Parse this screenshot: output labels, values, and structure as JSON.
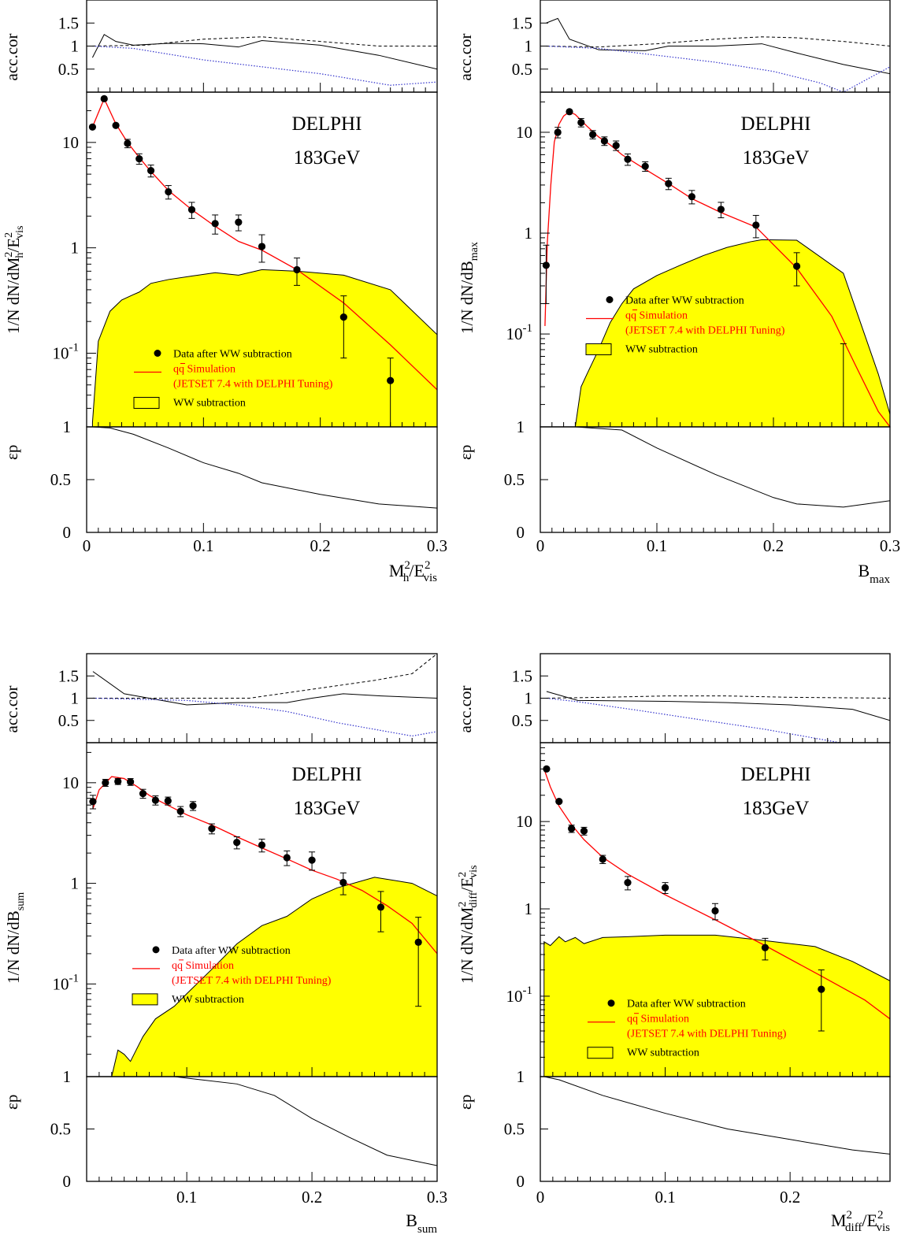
{
  "legend": {
    "data_label": "Data after WW subtraction",
    "sim_label": "qq Simulation",
    "sim_sub": "(JETSET 7.4 with DELPHI Tuning)",
    "ww_label": "WW subtraction"
  },
  "colors": {
    "data": "#000000",
    "simulation": "#ff0000",
    "ww": "#ffff00",
    "acc_dotted": "#3333cc"
  },
  "chart_data": [
    {
      "type": "scatter",
      "title": "DELPHI",
      "subtitle": "183GeV",
      "xlabel": "M_h^2/E_vis^2",
      "xlabel_parts": [
        "M",
        "2",
        "h",
        "/E",
        "2",
        "vis"
      ],
      "ylabel": "1/N dN/dM_h^2/E_vis^2",
      "ylabel_parts": [
        "1/N dN/dM",
        "2",
        "h",
        "/E",
        "2",
        "vis"
      ],
      "xlim": [
        0,
        0.3
      ],
      "x_ticks": [
        "0",
        "0.1",
        "0.2",
        "0.3"
      ],
      "main_ylim": [
        0.02,
        30
      ],
      "y_ticks": [
        "1",
        "10"
      ],
      "decade_labels": [
        {
          "base": "10",
          "exp": "-1"
        }
      ],
      "data": {
        "x": [
          0.005,
          0.015,
          0.025,
          0.035,
          0.045,
          0.055,
          0.07,
          0.09,
          0.11,
          0.13,
          0.15,
          0.18,
          0.22,
          0.26
        ],
        "y": [
          14,
          26,
          14.5,
          9.8,
          7,
          5.4,
          3.4,
          2.3,
          1.7,
          1.75,
          1.03,
          0.62,
          0.22,
          0.055
        ],
        "err": [
          0,
          0,
          0,
          0.9,
          0.8,
          0.7,
          0.5,
          0.4,
          0.35,
          0.3,
          0.3,
          0.18,
          0.13,
          0.035
        ]
      },
      "simulation": {
        "x": [
          0.005,
          0.015,
          0.025,
          0.035,
          0.045,
          0.055,
          0.07,
          0.09,
          0.11,
          0.13,
          0.15,
          0.18,
          0.22,
          0.26,
          0.3
        ],
        "y": [
          14,
          26,
          15,
          10,
          7.2,
          5.3,
          3.5,
          2.3,
          1.6,
          1.15,
          0.95,
          0.62,
          0.3,
          0.12,
          0.045
        ]
      },
      "ww": {
        "x": [
          0.005,
          0.01,
          0.02,
          0.03,
          0.04,
          0.045,
          0.055,
          0.07,
          0.09,
          0.11,
          0.13,
          0.15,
          0.18,
          0.22,
          0.26,
          0.3
        ],
        "y": [
          0.022,
          0.13,
          0.25,
          0.32,
          0.36,
          0.38,
          0.46,
          0.5,
          0.54,
          0.58,
          0.55,
          0.62,
          0.6,
          0.55,
          0.4,
          0.15
        ]
      },
      "legend_position": "lower-center",
      "legend_ww_filled": false,
      "acc": {
        "ylabel": "acc.cor",
        "ylim": [
          0,
          2
        ],
        "y_ticks": [
          "0.5",
          "1",
          "1.5"
        ],
        "solid": {
          "x": [
            0.005,
            0.015,
            0.025,
            0.04,
            0.07,
            0.1,
            0.13,
            0.15,
            0.2,
            0.25,
            0.3
          ],
          "y": [
            0.75,
            1.25,
            1.1,
            1.02,
            1.06,
            1.05,
            0.98,
            1.12,
            1.02,
            0.8,
            0.5
          ]
        },
        "dashed": {
          "x": [
            0.005,
            0.05,
            0.1,
            0.15,
            0.2,
            0.25,
            0.3
          ],
          "y": [
            1,
            1.02,
            1.15,
            1.2,
            1.1,
            1.0,
            1.0
          ]
        },
        "dotted": {
          "x": [
            0.005,
            0.04,
            0.1,
            0.15,
            0.2,
            0.26,
            0.3
          ],
          "y": [
            1,
            0.95,
            0.7,
            0.55,
            0.4,
            0.15,
            0.22
          ]
        }
      },
      "eff": {
        "ylabel": "εp",
        "ylim": [
          0,
          1
        ],
        "y_ticks": [
          "0",
          "0.5",
          "1"
        ],
        "line": {
          "x": [
            0.005,
            0.02,
            0.04,
            0.07,
            0.1,
            0.13,
            0.15,
            0.2,
            0.25,
            0.3
          ],
          "y": [
            1,
            0.99,
            0.93,
            0.8,
            0.66,
            0.56,
            0.47,
            0.36,
            0.27,
            0.23
          ]
        }
      }
    },
    {
      "type": "scatter",
      "title": "DELPHI",
      "subtitle": "183GeV",
      "xlabel": "B_max",
      "xlabel_parts": [
        "B",
        "",
        "max",
        "",
        "",
        ""
      ],
      "ylabel": "1/N dN/dB_max",
      "ylabel_parts": [
        "1/N dN/dB",
        "",
        "max",
        "",
        "",
        ""
      ],
      "xlim": [
        0,
        0.3
      ],
      "x_ticks": [
        "0",
        "0.1",
        "0.2",
        "0.3"
      ],
      "main_ylim": [
        0.012,
        25
      ],
      "y_ticks": [
        "1",
        "10"
      ],
      "decade_labels": [
        {
          "base": "10",
          "exp": "-1"
        }
      ],
      "data": {
        "x": [
          0.005,
          0.015,
          0.025,
          0.035,
          0.045,
          0.055,
          0.065,
          0.075,
          0.09,
          0.11,
          0.13,
          0.155,
          0.185,
          0.22,
          0.26
        ],
        "y": [
          0.48,
          10,
          16,
          12.5,
          9.5,
          8.2,
          7.4,
          5.4,
          4.6,
          3.1,
          2.3,
          1.72,
          1.2,
          0.47,
          null
        ],
        "err": [
          0.28,
          1.2,
          0.5,
          1.2,
          0.9,
          0.8,
          0.8,
          0.7,
          0.5,
          0.4,
          0.35,
          0.3,
          0.3,
          0.17,
          null
        ],
        "lone_errorbar": {
          "x": 0.26,
          "lo": 0.012,
          "hi": 0.08
        }
      },
      "simulation": {
        "x": [
          0.004,
          0.006,
          0.009,
          0.012,
          0.016,
          0.02,
          0.025,
          0.03,
          0.04,
          0.05,
          0.06,
          0.07,
          0.09,
          0.11,
          0.13,
          0.155,
          0.185,
          0.22,
          0.25,
          0.27,
          0.29,
          0.3
        ],
        "y": [
          0.12,
          0.8,
          3,
          8,
          12,
          14.5,
          16,
          15,
          11.5,
          9,
          7.5,
          6,
          4.3,
          3.1,
          2.2,
          1.6,
          1.15,
          0.45,
          0.15,
          0.05,
          0.017,
          0.012
        ]
      },
      "ww": {
        "x": [
          0.03,
          0.035,
          0.04,
          0.05,
          0.06,
          0.07,
          0.08,
          0.1,
          0.12,
          0.14,
          0.16,
          0.18,
          0.19,
          0.22,
          0.26,
          0.29,
          0.3
        ],
        "y": [
          0.012,
          0.03,
          0.04,
          0.07,
          0.13,
          0.2,
          0.28,
          0.38,
          0.48,
          0.6,
          0.72,
          0.82,
          0.86,
          0.85,
          0.4,
          0.04,
          0.016
        ]
      },
      "legend_position": "center",
      "legend_ww_filled": true,
      "acc": {
        "ylabel": "acc.cor",
        "ylim": [
          0,
          2
        ],
        "y_ticks": [
          "0.5",
          "1",
          "1.5"
        ],
        "solid": {
          "x": [
            0.005,
            0.015,
            0.025,
            0.05,
            0.09,
            0.11,
            0.15,
            0.19,
            0.22,
            0.26,
            0.3
          ],
          "y": [
            1.5,
            1.6,
            1.15,
            0.92,
            0.9,
            1.0,
            1.0,
            1.05,
            0.85,
            0.6,
            0.4
          ]
        },
        "dashed": {
          "x": [
            0.005,
            0.05,
            0.1,
            0.15,
            0.19,
            0.22,
            0.26,
            0.3
          ],
          "y": [
            1,
            0.98,
            1.05,
            1.15,
            1.2,
            1.18,
            1.1,
            1.0
          ]
        },
        "dotted": {
          "x": [
            0.005,
            0.05,
            0.1,
            0.15,
            0.2,
            0.24,
            0.26,
            0.3
          ],
          "y": [
            1,
            0.95,
            0.8,
            0.65,
            0.45,
            0.2,
            0.0,
            0.55
          ]
        }
      },
      "eff": {
        "ylabel": "εp",
        "ylim": [
          0,
          1
        ],
        "y_ticks": [
          "0",
          "0.5",
          "1"
        ],
        "line": {
          "x": [
            0.005,
            0.03,
            0.07,
            0.1,
            0.15,
            0.2,
            0.22,
            0.26,
            0.3
          ],
          "y": [
            1,
            1,
            0.97,
            0.8,
            0.55,
            0.33,
            0.27,
            0.24,
            0.3
          ]
        }
      }
    },
    {
      "type": "scatter",
      "title": "DELPHI",
      "subtitle": "183GeV",
      "xlabel": "B_sum",
      "xlabel_parts": [
        "B",
        "",
        "sum",
        "",
        "",
        ""
      ],
      "ylabel": "1/N dN/dB_sum",
      "ylabel_parts": [
        "1/N dN/dB",
        "",
        "sum",
        "",
        "",
        ""
      ],
      "xlim": [
        0.02,
        0.3
      ],
      "x_ticks": [
        "0.1",
        "0.2",
        "0.3"
      ],
      "main_ylim": [
        0.012,
        25
      ],
      "y_ticks": [
        "1",
        "10"
      ],
      "decade_labels": [
        {
          "base": "10",
          "exp": "-1"
        }
      ],
      "data": {
        "x": [
          0.025,
          0.035,
          0.045,
          0.055,
          0.065,
          0.075,
          0.085,
          0.095,
          0.105,
          0.12,
          0.14,
          0.16,
          0.18,
          0.2,
          0.225,
          0.255,
          0.285
        ],
        "y": [
          6.5,
          10,
          10.3,
          10.2,
          7.8,
          6.7,
          6.6,
          5.2,
          5.9,
          3.5,
          2.55,
          2.4,
          1.8,
          1.7,
          1.02,
          0.58,
          0.26
        ],
        "err": [
          1.0,
          0.8,
          0.7,
          0.8,
          0.8,
          0.7,
          0.6,
          0.6,
          0.6,
          0.4,
          0.35,
          0.35,
          0.3,
          0.35,
          0.25,
          0.25,
          0.2
        ]
      },
      "simulation": {
        "x": [
          0.025,
          0.03,
          0.04,
          0.05,
          0.06,
          0.07,
          0.08,
          0.1,
          0.12,
          0.14,
          0.16,
          0.18,
          0.2,
          0.22,
          0.24,
          0.26,
          0.28,
          0.3
        ],
        "y": [
          5.5,
          8.5,
          11.5,
          11,
          9.2,
          7.5,
          6.4,
          4.8,
          3.8,
          2.9,
          2.25,
          1.75,
          1.35,
          1.1,
          0.85,
          0.6,
          0.4,
          0.2
        ]
      },
      "ww": {
        "x": [
          0.04,
          0.045,
          0.05,
          0.055,
          0.065,
          0.075,
          0.09,
          0.1,
          0.12,
          0.14,
          0.16,
          0.18,
          0.2,
          0.22,
          0.25,
          0.28,
          0.3
        ],
        "y": [
          0.012,
          0.022,
          0.02,
          0.017,
          0.03,
          0.045,
          0.06,
          0.08,
          0.14,
          0.25,
          0.38,
          0.47,
          0.7,
          0.9,
          1.15,
          1.0,
          0.75
        ]
      },
      "legend_position": "center",
      "legend_ww_filled": true,
      "acc": {
        "ylabel": "acc.cor",
        "ylim": [
          0,
          2
        ],
        "y_ticks": [
          "0.5",
          "1",
          "1.5"
        ],
        "solid": {
          "x": [
            0.025,
            0.05,
            0.08,
            0.1,
            0.14,
            0.18,
            0.2,
            0.225,
            0.255,
            0.3
          ],
          "y": [
            1.6,
            1.1,
            0.95,
            0.85,
            0.9,
            0.9,
            1.0,
            1.1,
            1.05,
            1.0
          ]
        },
        "dashed": {
          "x": [
            0.025,
            0.1,
            0.15,
            0.2,
            0.25,
            0.28,
            0.3
          ],
          "y": [
            1,
            1,
            1,
            1.2,
            1.4,
            1.55,
            2.0
          ]
        },
        "dotted": {
          "x": [
            0.025,
            0.1,
            0.14,
            0.18,
            0.22,
            0.27,
            0.28,
            0.3
          ],
          "y": [
            1,
            0.95,
            0.85,
            0.7,
            0.45,
            0.2,
            0.15,
            0.25
          ]
        }
      },
      "eff": {
        "ylabel": "εp",
        "ylim": [
          0,
          1
        ],
        "y_ticks": [
          "0",
          "0.5",
          "1"
        ],
        "line": {
          "x": [
            0.05,
            0.09,
            0.14,
            0.17,
            0.2,
            0.23,
            0.26,
            0.3
          ],
          "y": [
            1.0,
            1.0,
            0.93,
            0.82,
            0.6,
            0.42,
            0.25,
            0.15
          ]
        }
      }
    },
    {
      "type": "scatter",
      "title": "DELPHI",
      "subtitle": "183GeV",
      "xlabel": "M_diff^2/E_vis^2",
      "xlabel_parts": [
        "M",
        "2",
        "diff",
        "/E",
        "2",
        "vis"
      ],
      "ylabel": "1/N dN/dM_diff^2/E_vis^2",
      "ylabel_parts": [
        "1/N dN/dM",
        "2",
        "diff",
        "/E",
        "2",
        "vis"
      ],
      "xlim": [
        0,
        0.28
      ],
      "x_ticks": [
        "0",
        "0.1",
        "0.2"
      ],
      "main_ylim": [
        0.012,
        80
      ],
      "y_ticks": [
        "1",
        "10"
      ],
      "decade_labels": [
        {
          "base": "10",
          "exp": "-1"
        }
      ],
      "data": {
        "x": [
          0.005,
          0.015,
          0.025,
          0.035,
          0.05,
          0.07,
          0.1,
          0.14,
          0.18,
          0.225
        ],
        "y": [
          40,
          17,
          8.3,
          7.8,
          3.7,
          2.0,
          1.75,
          0.95,
          0.36,
          0.12
        ],
        "err": [
          0,
          0,
          0.8,
          0.8,
          0.4,
          0.35,
          0.25,
          0.2,
          0.1,
          0.08
        ]
      },
      "simulation": {
        "x": [
          0.003,
          0.008,
          0.015,
          0.025,
          0.035,
          0.05,
          0.07,
          0.1,
          0.14,
          0.18,
          0.225,
          0.26,
          0.28
        ],
        "y": [
          40,
          25,
          15,
          9.2,
          6.2,
          3.9,
          2.5,
          1.45,
          0.75,
          0.38,
          0.17,
          0.09,
          0.055
        ]
      },
      "ww": {
        "x": [
          0.003,
          0.008,
          0.015,
          0.02,
          0.028,
          0.035,
          0.05,
          0.07,
          0.1,
          0.14,
          0.17,
          0.22,
          0.25,
          0.28
        ],
        "y": [
          0.42,
          0.38,
          0.48,
          0.42,
          0.47,
          0.4,
          0.47,
          0.48,
          0.5,
          0.5,
          0.45,
          0.37,
          0.25,
          0.15
        ]
      },
      "legend_position": "lower-center",
      "legend_ww_filled": false,
      "acc": {
        "ylabel": "acc.cor",
        "ylim": [
          0,
          2
        ],
        "y_ticks": [
          "0.5",
          "1",
          "1.5"
        ],
        "solid": {
          "x": [
            0.005,
            0.03,
            0.1,
            0.15,
            0.2,
            0.25,
            0.28
          ],
          "y": [
            1.15,
            0.95,
            0.93,
            0.9,
            0.85,
            0.75,
            0.5
          ]
        },
        "dashed": {
          "x": [
            0.005,
            0.05,
            0.1,
            0.15,
            0.2,
            0.28
          ],
          "y": [
            1,
            1.02,
            1.05,
            1.05,
            1.02,
            1.0
          ]
        },
        "dotted": {
          "x": [
            0.005,
            0.03,
            0.08,
            0.12,
            0.18,
            0.22,
            0.24
          ],
          "y": [
            1,
            0.92,
            0.72,
            0.55,
            0.3,
            0.1,
            0.0
          ]
        }
      },
      "eff": {
        "ylabel": "εp",
        "ylim": [
          0,
          1
        ],
        "y_ticks": [
          "0",
          "0.5",
          "1"
        ],
        "line": {
          "x": [
            0.003,
            0.015,
            0.05,
            0.1,
            0.15,
            0.2,
            0.25,
            0.28
          ],
          "y": [
            1,
            0.97,
            0.82,
            0.65,
            0.5,
            0.4,
            0.3,
            0.26
          ]
        }
      }
    }
  ]
}
